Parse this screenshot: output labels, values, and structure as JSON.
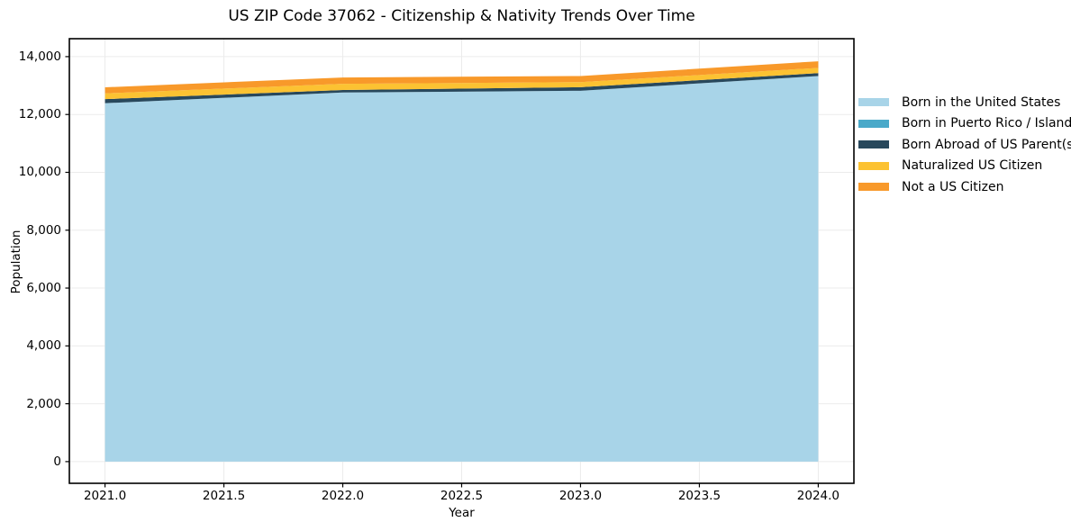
{
  "title": "US ZIP Code 37062 - Citizenship & Nativity Trends Over Time",
  "chart_data": {
    "type": "area",
    "stacked": true,
    "title": "US ZIP Code 37062 - Citizenship & Nativity Trends Over Time",
    "xlabel": "Year",
    "ylabel": "Population",
    "x": [
      2021,
      2022,
      2023,
      2024
    ],
    "series": [
      {
        "name": "Born in the United States",
        "color": "#a8d4e8",
        "values": [
          12390,
          12760,
          12820,
          13330
        ]
      },
      {
        "name": "Born in Puerto Rico / Islands",
        "color": "#4aa9c9",
        "values": [
          0,
          0,
          0,
          0
        ]
      },
      {
        "name": "Born Abroad of US Parent(s)",
        "color": "#28485c",
        "values": [
          140,
          85,
          125,
          100
        ]
      },
      {
        "name": "Naturalized US Citizen",
        "color": "#fcc232",
        "values": [
          200,
          215,
          175,
          180
        ]
      },
      {
        "name": "Not a US Citizen",
        "color": "#f8992a",
        "values": [
          210,
          220,
          210,
          230
        ]
      }
    ],
    "totals": [
      12940,
      13280,
      13330,
      13840
    ],
    "x_ticks": {
      "values": [
        2021,
        2021.5,
        2022,
        2022.5,
        2023,
        2023.5,
        2024
      ],
      "labels": [
        "2021.0",
        "2021.5",
        "2022.0",
        "2022.5",
        "2023.0",
        "2023.5",
        "2024.0"
      ]
    },
    "y_ticks": {
      "values": [
        0,
        2000,
        4000,
        6000,
        8000,
        10000,
        12000,
        14000
      ],
      "labels": [
        "0",
        "2,000",
        "4,000",
        "6,000",
        "8,000",
        "10,000",
        "12,000",
        "14,000"
      ]
    },
    "xlim": [
      2020.85,
      2024.15
    ],
    "ylim": [
      -750,
      14620
    ],
    "grid": true,
    "grid_color": "#ebebeb",
    "spine_color": "#000000",
    "background_color": "#ffffff",
    "legend_position": "right"
  }
}
